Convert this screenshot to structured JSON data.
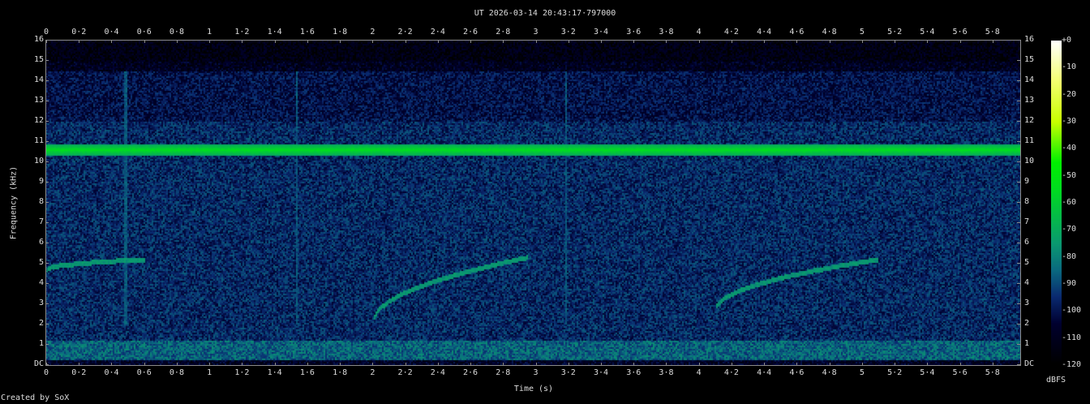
{
  "chart_data": {
    "type": "heatmap",
    "title": "UT 2026-03-14 20:43:17·797000",
    "xlabel": "Time (s)",
    "ylabel": "Frequency (kHz)",
    "xlim": [
      0,
      5.97
    ],
    "ylim": [
      0,
      16
    ],
    "x_ticks": [
      "0",
      "0·2",
      "0·4",
      "0·6",
      "0·8",
      "1",
      "1·2",
      "1·4",
      "1·6",
      "1·8",
      "2",
      "2·2",
      "2·4",
      "2·6",
      "2·8",
      "3",
      "3·2",
      "3·4",
      "3·6",
      "3·8",
      "4",
      "4·2",
      "4·4",
      "4·6",
      "4·8",
      "5",
      "5·2",
      "5·4",
      "5·6",
      "5·8"
    ],
    "y_ticks": [
      "DC",
      "1",
      "2",
      "3",
      "4",
      "5",
      "6",
      "7",
      "8",
      "9",
      "10",
      "11",
      "12",
      "13",
      "14",
      "15",
      "16"
    ],
    "colorbar": {
      "label": "dBFS",
      "ticks": [
        "+0",
        "-10",
        "-20",
        "-30",
        "-40",
        "-50",
        "-60",
        "-70",
        "-80",
        "-90",
        "-100",
        "-110",
        "-120"
      ],
      "range": [
        -120,
        0
      ],
      "colors": [
        "#000000",
        "#00002e",
        "#0a2a70",
        "#0a6a80",
        "#0a9a70",
        "#00dd20",
        "#00f000",
        "#c8ff00",
        "#f4ff70",
        "#ffffff"
      ]
    },
    "features": {
      "tone_khz": 10.6,
      "tone_level_dbfs": -55,
      "sweeps": [
        {
          "t": [
            0,
            0.6
          ],
          "f_khz": [
            4.7,
            5.2
          ]
        },
        {
          "t": [
            2.0,
            2.95
          ],
          "f_khz": [
            2.1,
            5.3
          ]
        },
        {
          "t": [
            4.1,
            5.1
          ],
          "f_khz": [
            2.7,
            5.2
          ]
        }
      ],
      "clicks_s": [
        0.48,
        1.53,
        3.18
      ]
    }
  },
  "footer": "Created by SoX"
}
